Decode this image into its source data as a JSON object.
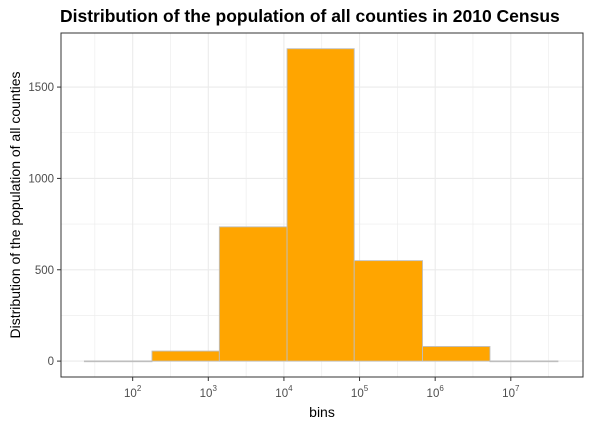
{
  "chart_data": {
    "type": "bar",
    "title": "Distribution of the population of all counties in 2010 Census",
    "xlabel": "bins",
    "ylabel": "Distribution of the population of all counties",
    "x_scale": "log10",
    "x_ticks": [
      {
        "base": "10",
        "exp": "2",
        "value": 100
      },
      {
        "base": "10",
        "exp": "3",
        "value": 1000
      },
      {
        "base": "10",
        "exp": "4",
        "value": 10000
      },
      {
        "base": "10",
        "exp": "5",
        "value": 100000
      },
      {
        "base": "10",
        "exp": "6",
        "value": 1000000
      },
      {
        "base": "10",
        "exp": "7",
        "value": 10000000
      }
    ],
    "y_ticks": [
      "0",
      "500",
      "1000",
      "1500"
    ],
    "ylim": [
      0,
      1750
    ],
    "bins": [
      {
        "x_start": 23,
        "x_end": 180,
        "count": 1
      },
      {
        "x_start": 180,
        "x_end": 1400,
        "count": 55
      },
      {
        "x_start": 1400,
        "x_end": 11000,
        "count": 735
      },
      {
        "x_start": 11000,
        "x_end": 85000,
        "count": 1710
      },
      {
        "x_start": 85000,
        "x_end": 680000,
        "count": 550
      },
      {
        "x_start": 680000,
        "x_end": 5300000,
        "count": 80
      },
      {
        "x_start": 5300000,
        "x_end": 42000000,
        "count": 1
      }
    ],
    "grid": true,
    "colors": {
      "bar_fill": "#FFA500",
      "bar_stroke": "#BEBEBE",
      "grid": "#EBEBEB",
      "panel_border": "#333333",
      "tick_text": "#4D4D4D"
    }
  }
}
